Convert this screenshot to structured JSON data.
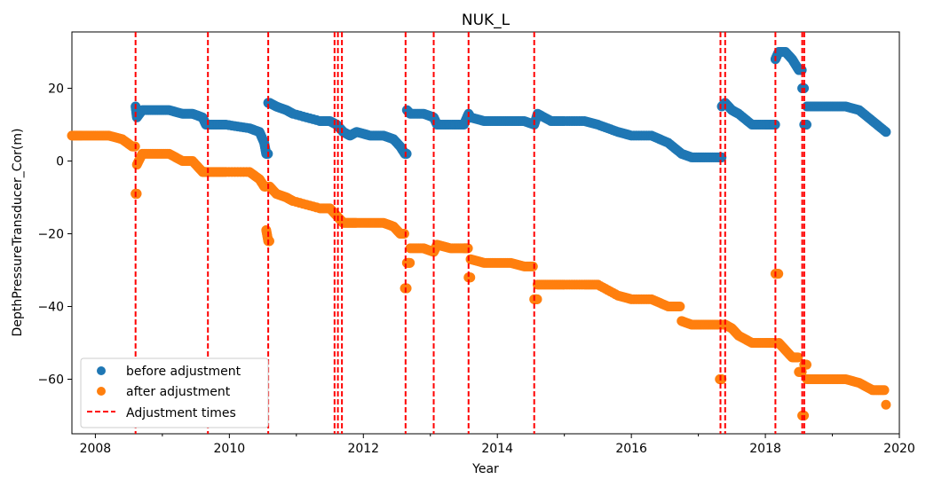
{
  "chart_data": {
    "type": "scatter",
    "title": "NUK_L",
    "xlabel": "Year",
    "ylabel": "DepthPressureTransducer_Cor(m)",
    "xlim": [
      2007.65,
      2020.0
    ],
    "ylim": [
      -75,
      35.5
    ],
    "x_ticks": [
      2008,
      2010,
      2012,
      2014,
      2016,
      2018,
      2020
    ],
    "y_ticks": [
      20,
      0,
      -20,
      -40,
      -60
    ],
    "legend_position": "lower-left",
    "grid": false,
    "series": [
      {
        "name": "before adjustment",
        "color": "#1f77b4",
        "x": [
          2008.6,
          2008.62,
          2008.7,
          2008.9,
          2009.1,
          2009.3,
          2009.45,
          2009.6,
          2009.65,
          2009.8,
          2009.95,
          2010.3,
          2010.45,
          2010.52,
          2010.55,
          2010.58,
          2010.6,
          2010.7,
          2010.85,
          2010.95,
          2011.35,
          2011.5,
          2011.6,
          2011.65,
          2011.7,
          2011.8,
          2011.9,
          2012.1,
          2012.3,
          2012.45,
          2012.55,
          2012.62,
          2012.65,
          2012.7,
          2012.9,
          2013.05,
          2013.1,
          2013.3,
          2013.5,
          2013.57,
          2013.6,
          2013.8,
          2014.0,
          2014.2,
          2014.4,
          2014.55,
          2014.6,
          2014.8,
          2015.0,
          2015.3,
          2015.5,
          2015.8,
          2016.0,
          2016.3,
          2016.55,
          2016.75,
          2016.9,
          2017.1,
          2017.32,
          2017.35,
          2017.4,
          2017.5,
          2017.6,
          2017.8,
          2018.0,
          2018.12,
          2018.15,
          2018.2,
          2018.3,
          2018.4,
          2018.5,
          2018.55,
          2018.58,
          2018.62,
          2018.8,
          2019.0,
          2019.2,
          2019.4,
          2019.6,
          2019.8
        ],
        "y": [
          15,
          12,
          14,
          14,
          14,
          13,
          13,
          12,
          10,
          10,
          10,
          9,
          8,
          5,
          2,
          16,
          16,
          15,
          14,
          13,
          11,
          11,
          10,
          9,
          8,
          7,
          8,
          7,
          7,
          6,
          4,
          2,
          14,
          13,
          13,
          12,
          10,
          10,
          10,
          13,
          12,
          11,
          11,
          11,
          11,
          10,
          13,
          11,
          11,
          11,
          10,
          8,
          7,
          7,
          5,
          2,
          1,
          1,
          1,
          15,
          16,
          14,
          13,
          10,
          10,
          10,
          28,
          30,
          30,
          28,
          25,
          20,
          10,
          15,
          15,
          15,
          15,
          14,
          11,
          8
        ]
      },
      {
        "name": "after adjustment",
        "color": "#ff7f0e",
        "x": [
          2007.65,
          2007.8,
          2008.0,
          2008.2,
          2008.4,
          2008.55,
          2008.6,
          2008.62,
          2008.7,
          2008.9,
          2009.1,
          2009.3,
          2009.45,
          2009.6,
          2009.65,
          2009.8,
          2009.95,
          2010.3,
          2010.45,
          2010.52,
          2010.55,
          2010.58,
          2010.6,
          2010.7,
          2010.85,
          2010.95,
          2011.35,
          2011.5,
          2011.6,
          2011.65,
          2011.7,
          2011.8,
          2011.9,
          2012.1,
          2012.3,
          2012.45,
          2012.55,
          2012.62,
          2012.65,
          2012.7,
          2012.9,
          2013.05,
          2013.1,
          2013.3,
          2013.5,
          2013.57,
          2013.6,
          2013.8,
          2014.0,
          2014.2,
          2014.4,
          2014.55,
          2014.6,
          2014.8,
          2015.0,
          2015.3,
          2015.5,
          2015.8,
          2016.0,
          2016.3,
          2016.55,
          2016.75,
          2016.9,
          2017.1,
          2017.32,
          2017.35,
          2017.4,
          2017.5,
          2017.6,
          2017.8,
          2018.0,
          2018.12,
          2018.15,
          2018.2,
          2018.3,
          2018.4,
          2018.5,
          2018.55,
          2018.58,
          2018.62,
          2018.8,
          2019.0,
          2019.2,
          2019.4,
          2019.6,
          2019.8
        ],
        "y": [
          7,
          7,
          7,
          7,
          6,
          4,
          -9,
          -1,
          2,
          2,
          2,
          0,
          0,
          -3,
          -3,
          -3,
          -3,
          -3,
          -5,
          -7,
          -19,
          -22,
          -7,
          -9,
          -10,
          -11,
          -13,
          -13,
          -15,
          -16,
          -17,
          -17,
          -17,
          -17,
          -17,
          -18,
          -20,
          -35,
          -28,
          -24,
          -24,
          -25,
          -23,
          -24,
          -24,
          -32,
          -27,
          -28,
          -28,
          -28,
          -29,
          -38,
          -34,
          -34,
          -34,
          -34,
          -34,
          -37,
          -38,
          -38,
          -40,
          -44,
          -45,
          -45,
          -60,
          -45,
          -45,
          -46,
          -48,
          -50,
          -50,
          -50,
          -31,
          -50,
          -52,
          -54,
          -58,
          -70,
          -56,
          -60,
          -60,
          -60,
          -60,
          -61,
          -63,
          -67
        ]
      },
      {
        "name": "Adjustment times",
        "color": "#ff0000",
        "x": [
          2008.6,
          2009.68,
          2010.58,
          2011.57,
          2011.62,
          2011.68,
          2012.63,
          2013.05,
          2013.57,
          2014.55,
          2017.33,
          2017.4,
          2018.15,
          2018.55,
          2018.58
        ]
      }
    ]
  }
}
